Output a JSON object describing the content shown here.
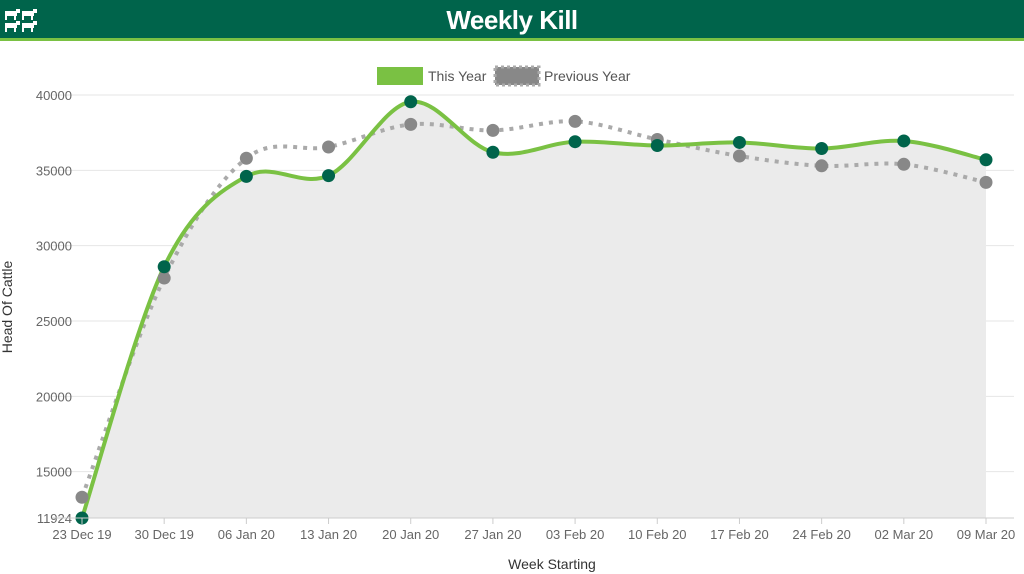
{
  "header": {
    "title": "Weekly Kill",
    "logo_icon": "cattle-herd-icon"
  },
  "colors": {
    "brand": "#00644b",
    "this_year_line": "#7ac143",
    "this_year_marker": "#00644b",
    "previous_year_line": "#aaaaaa",
    "previous_year_marker": "#888888",
    "area_fill": "#ebebeb"
  },
  "chart_data": {
    "type": "line",
    "categories": [
      "23 Dec 19",
      "30 Dec 19",
      "06 Jan 20",
      "13 Jan 20",
      "20 Jan 20",
      "27 Jan 20",
      "03 Feb 20",
      "10 Feb 20",
      "17 Feb 20",
      "24 Feb 20",
      "02 Mar 20",
      "09 Mar 20"
    ],
    "series": [
      {
        "name": "This Year",
        "style": "solid",
        "values": [
          11924,
          28600,
          34600,
          34650,
          39550,
          36200,
          36900,
          36650,
          36850,
          36450,
          36950,
          35700
        ]
      },
      {
        "name": "Previous Year",
        "style": "dotted",
        "values": [
          13300,
          27850,
          35800,
          36550,
          38050,
          37650,
          38250,
          37050,
          35950,
          35300,
          35400,
          34200
        ]
      }
    ],
    "xlabel": "Week Starting",
    "ylabel": "Head Of Cattle",
    "ylim": [
      11924,
      40000
    ],
    "yticks": [
      15000,
      20000,
      25000,
      30000,
      35000,
      40000
    ],
    "ymin_label": "11924",
    "grid": true,
    "legend_position": "top-center"
  }
}
